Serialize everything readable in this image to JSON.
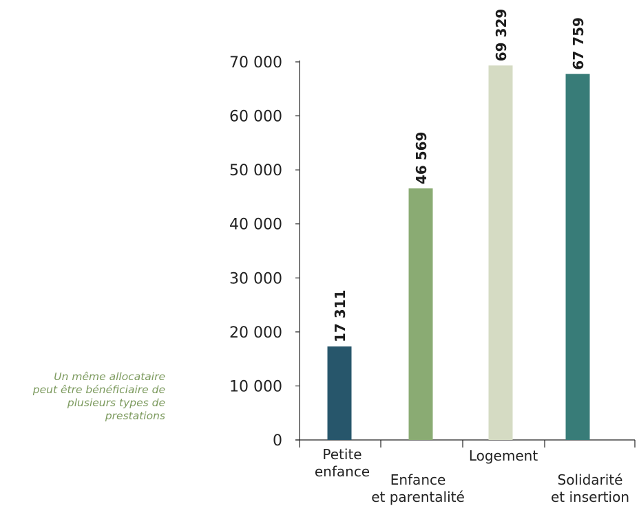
{
  "chart_data": {
    "type": "bar",
    "categories": [
      [
        "Petite",
        "enfance"
      ],
      [
        "Enfance",
        "et parentalité"
      ],
      [
        "Logement"
      ],
      [
        "Solidarité",
        "et insertion"
      ]
    ],
    "values": [
      17311,
      46569,
      69329,
      67759
    ],
    "value_labels": [
      "17 311",
      "46 569",
      "69 329",
      "67 759"
    ],
    "bar_colors": [
      "#27566b",
      "#8aab73",
      "#d5dbc3",
      "#387c78"
    ],
    "yticks": [
      0,
      10000,
      20000,
      30000,
      40000,
      50000,
      60000,
      70000
    ],
    "ytick_labels": [
      "0",
      "10 000",
      "20 000",
      "30 000",
      "40 000",
      "50 000",
      "60 000",
      "70 000"
    ],
    "ylim": [
      0,
      70000
    ],
    "grid": false,
    "title": "",
    "xlabel": "",
    "ylabel": ""
  },
  "note": {
    "lines": [
      "Un même allocataire",
      "peut être bénéficiaire de",
      "plusieurs types de",
      "prestations"
    ],
    "color": "#7c9a5e"
  }
}
